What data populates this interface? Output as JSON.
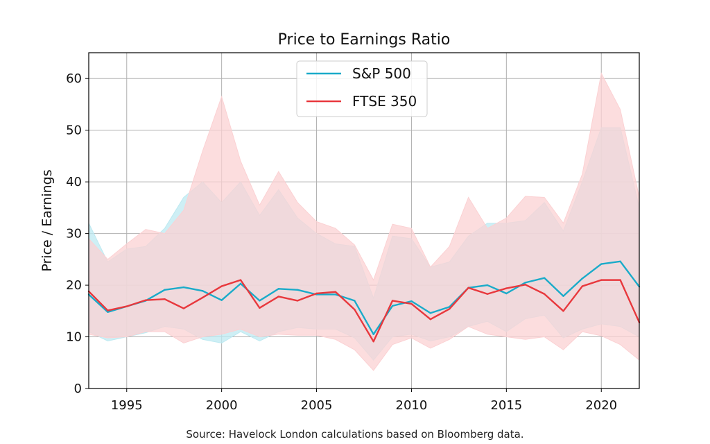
{
  "chart_data": {
    "type": "line",
    "title": "Price to Earnings Ratio",
    "ylabel": "Price / Earnings",
    "xlabel": "",
    "xlim": [
      1993,
      2022
    ],
    "ylim": [
      0,
      65
    ],
    "xticks": [
      1995,
      2000,
      2005,
      2010,
      2015,
      2020
    ],
    "yticks": [
      0,
      10,
      20,
      30,
      40,
      50,
      60
    ],
    "grid": true,
    "legend_position": "top-center",
    "x": [
      1993,
      1994,
      1995,
      1996,
      1997,
      1998,
      1999,
      2000,
      2001,
      2002,
      2003,
      2004,
      2005,
      2006,
      2007,
      2008,
      2009,
      2010,
      2011,
      2012,
      2013,
      2014,
      2015,
      2016,
      2017,
      2018,
      2019,
      2020,
      2021,
      2022
    ],
    "series": [
      {
        "name": "S&P 500",
        "color": "#1aabc9",
        "band_color": "#bde9f1",
        "values": [
          18.2,
          14.8,
          15.9,
          17.0,
          19.1,
          19.6,
          18.9,
          17.1,
          20.3,
          17.0,
          19.3,
          19.1,
          18.2,
          18.2,
          17.0,
          10.5,
          16.0,
          16.9,
          14.6,
          15.8,
          19.5,
          20.0,
          18.4,
          20.5,
          21.4,
          17.9,
          21.3,
          24.1,
          24.6,
          19.7
        ],
        "band_upper": [
          32.0,
          24.5,
          27.0,
          27.5,
          31.0,
          37.0,
          40.0,
          36.0,
          40.0,
          33.5,
          38.5,
          33.0,
          30.0,
          28.0,
          27.5,
          17.5,
          29.5,
          29.0,
          23.5,
          24.5,
          29.5,
          32.0,
          32.0,
          32.5,
          36.0,
          30.5,
          40.0,
          50.5,
          50.5,
          35.0
        ],
        "band_lower": [
          11.0,
          9.2,
          10.0,
          10.8,
          12.0,
          11.5,
          9.5,
          8.8,
          11.0,
          9.2,
          11.0,
          11.8,
          11.5,
          11.5,
          9.8,
          5.5,
          10.0,
          10.5,
          9.2,
          10.0,
          12.0,
          13.0,
          11.0,
          13.5,
          14.2,
          9.8,
          11.5,
          12.5,
          12.0,
          10.0
        ]
      },
      {
        "name": "FTSE 350",
        "color": "#e8383d",
        "band_color": "#fbd1d3",
        "values": [
          18.8,
          15.1,
          15.9,
          17.1,
          17.3,
          15.5,
          17.6,
          19.8,
          21.0,
          15.6,
          17.8,
          17.0,
          18.4,
          18.7,
          15.3,
          9.1,
          17.0,
          16.4,
          13.4,
          15.4,
          19.5,
          18.3,
          19.4,
          20.1,
          18.3,
          15.0,
          19.8,
          21.0,
          21.0,
          12.8
        ],
        "band_upper": [
          29.0,
          25.0,
          28.0,
          30.8,
          30.0,
          34.5,
          46.0,
          56.5,
          44.0,
          35.5,
          42.0,
          36.0,
          32.3,
          31.0,
          27.8,
          21.0,
          31.8,
          31.0,
          23.5,
          27.5,
          37.0,
          31.0,
          33.0,
          37.2,
          37.0,
          32.0,
          41.5,
          61.0,
          54.0,
          37.0
        ],
        "band_lower": [
          10.5,
          9.8,
          10.0,
          11.0,
          11.0,
          8.8,
          10.0,
          10.5,
          11.5,
          10.0,
          10.5,
          10.3,
          10.3,
          9.5,
          7.5,
          3.5,
          8.5,
          9.8,
          7.8,
          9.5,
          12.0,
          10.5,
          10.0,
          9.5,
          10.0,
          7.5,
          11.0,
          10.2,
          8.5,
          5.5
        ]
      }
    ]
  },
  "source_note": "Source: Havelock London calculations based on Bloomberg data."
}
